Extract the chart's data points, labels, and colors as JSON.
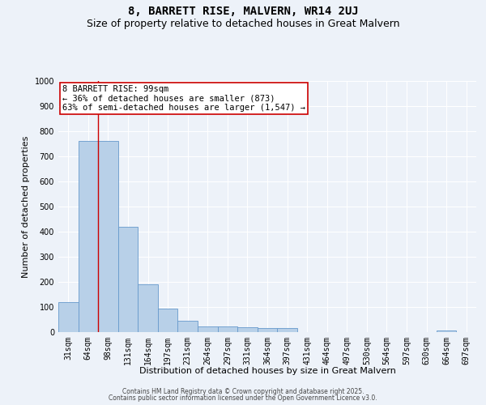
{
  "title": "8, BARRETT RISE, MALVERN, WR14 2UJ",
  "subtitle": "Size of property relative to detached houses in Great Malvern",
  "xlabel": "Distribution of detached houses by size in Great Malvern",
  "ylabel": "Number of detached properties",
  "categories": [
    "31sqm",
    "64sqm",
    "98sqm",
    "131sqm",
    "164sqm",
    "197sqm",
    "231sqm",
    "264sqm",
    "297sqm",
    "331sqm",
    "364sqm",
    "397sqm",
    "431sqm",
    "464sqm",
    "497sqm",
    "530sqm",
    "564sqm",
    "597sqm",
    "630sqm",
    "664sqm",
    "697sqm"
  ],
  "bar_heights": [
    120,
    760,
    760,
    420,
    190,
    95,
    45,
    22,
    22,
    20,
    15,
    15,
    0,
    0,
    0,
    0,
    0,
    0,
    0,
    7,
    0
  ],
  "bar_color": "#b8d0e8",
  "bar_edge_color": "#6699cc",
  "ylim": [
    0,
    1000
  ],
  "yticks": [
    0,
    100,
    200,
    300,
    400,
    500,
    600,
    700,
    800,
    900,
    1000
  ],
  "vline_x": 1.5,
  "vline_color": "#cc0000",
  "annotation_line1": "8 BARRETT RISE: 99sqm",
  "annotation_line2": "← 36% of detached houses are smaller (873)",
  "annotation_line3": "63% of semi-detached houses are larger (1,547) →",
  "annotation_box_color": "#ffffff",
  "annotation_box_edge": "#cc0000",
  "footer_line1": "Contains HM Land Registry data © Crown copyright and database right 2025.",
  "footer_line2": "Contains public sector information licensed under the Open Government Licence v3.0.",
  "bg_color": "#edf2f9",
  "grid_color": "#ffffff",
  "title_fontsize": 10,
  "subtitle_fontsize": 9,
  "tick_fontsize": 7,
  "ylabel_fontsize": 8,
  "xlabel_fontsize": 8,
  "annotation_fontsize": 7.5,
  "footer_fontsize": 5.5
}
